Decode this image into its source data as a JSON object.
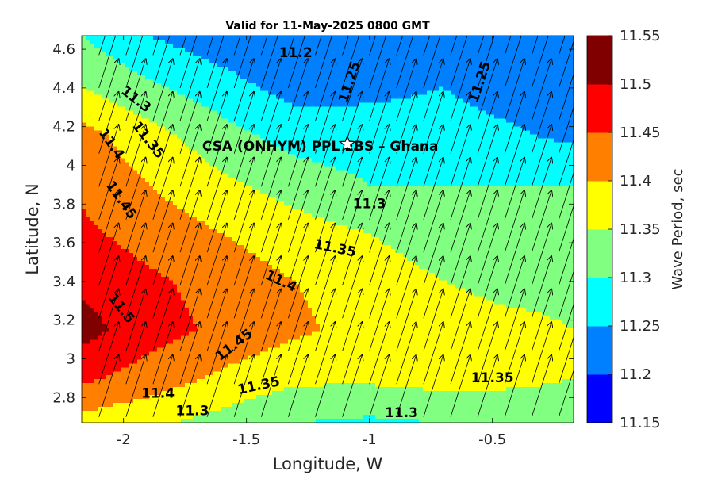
{
  "chart_data": {
    "type": "contour",
    "title": "Valid for 11-May-2025 0800 GMT",
    "xlabel": "Longitude, W",
    "ylabel": "Latitude, N",
    "xlim": [
      -2.17,
      -0.17
    ],
    "ylim": [
      2.67,
      4.67
    ],
    "xticks": [
      -2,
      -1.5,
      -1,
      -0.5
    ],
    "xtick_labels": [
      "-2",
      "-1.5",
      "-1",
      "-0.5"
    ],
    "yticks": [
      2.8,
      3.0,
      3.2,
      3.4,
      3.6,
      3.8,
      4.0,
      4.2,
      4.4,
      4.6
    ],
    "ytick_labels": [
      "2.8",
      "3",
      "3.2",
      "3.4",
      "3.6",
      "3.8",
      "4",
      "4.2",
      "4.4",
      "4.6"
    ],
    "colorbar": {
      "label": "Wave Period, sec",
      "levels": [
        11.15,
        11.2,
        11.25,
        11.3,
        11.35,
        11.4,
        11.45,
        11.5,
        11.55
      ],
      "level_labels": [
        "11.15",
        "11.2",
        "11.25",
        "11.3",
        "11.35",
        "11.4",
        "11.45",
        "11.5",
        "11.55"
      ],
      "colors": [
        "#0000ff",
        "#0080ff",
        "#00ffff",
        "#80ff80",
        "#ffff00",
        "#ff8000",
        "#ff0000",
        "#800000"
      ]
    },
    "contour_labels": [
      {
        "text": "11.2",
        "lon": -1.3,
        "lat": 4.58,
        "angle": 0
      },
      {
        "text": "11.25",
        "lon": -1.08,
        "lat": 4.43,
        "angle": -72
      },
      {
        "text": "11.25",
        "lon": -0.55,
        "lat": 4.43,
        "angle": -72
      },
      {
        "text": "11.3",
        "lon": -1.95,
        "lat": 4.34,
        "angle": 38
      },
      {
        "text": "11.35",
        "lon": -1.9,
        "lat": 4.13,
        "angle": 52
      },
      {
        "text": "11.4",
        "lon": -2.05,
        "lat": 4.11,
        "angle": 55
      },
      {
        "text": "11.45",
        "lon": -2.01,
        "lat": 3.82,
        "angle": 55
      },
      {
        "text": "11.3",
        "lon": -1.0,
        "lat": 3.8,
        "angle": 0
      },
      {
        "text": "11.35",
        "lon": -1.14,
        "lat": 3.57,
        "angle": 12
      },
      {
        "text": "11.4",
        "lon": -1.36,
        "lat": 3.4,
        "angle": 25
      },
      {
        "text": "11.5",
        "lon": -2.01,
        "lat": 3.26,
        "angle": 52
      },
      {
        "text": "11.45",
        "lon": -1.55,
        "lat": 3.07,
        "angle": -38
      },
      {
        "text": "11.4",
        "lon": -1.86,
        "lat": 2.82,
        "angle": 0
      },
      {
        "text": "11.35",
        "lon": -1.45,
        "lat": 2.86,
        "angle": -12
      },
      {
        "text": "11.3",
        "lon": -1.72,
        "lat": 2.73,
        "angle": 0
      },
      {
        "text": "11.35",
        "lon": -0.5,
        "lat": 2.9,
        "angle": 0
      },
      {
        "text": "11.3",
        "lon": -0.87,
        "lat": 2.72,
        "angle": 0
      }
    ],
    "annotation": {
      "text": "CSA (ONHYM) PPL EBS  – Ghana",
      "lon": -1.2,
      "lat": 4.1
    },
    "marker": {
      "symbol": "star",
      "lon": -1.09,
      "lat": 4.11
    },
    "vectors": {
      "description": "wave direction arrows",
      "lon_start": -2.1,
      "lon_step": 0.11,
      "lat_start": 2.7,
      "lat_step": 0.17,
      "dlon": 0.08,
      "dlat": 0.32
    },
    "field": {
      "lon": [
        -2.17,
        -1.9,
        -1.6,
        -1.3,
        -1.0,
        -0.7,
        -0.45,
        -0.17
      ],
      "lat": [
        2.67,
        2.9,
        3.15,
        3.4,
        3.65,
        3.9,
        4.15,
        4.4,
        4.67
      ],
      "values": [
        [
          11.38,
          11.36,
          11.33,
          11.3,
          11.29,
          11.3,
          11.32,
          11.33
        ],
        [
          11.46,
          11.43,
          11.39,
          11.36,
          11.36,
          11.37,
          11.36,
          11.35
        ],
        [
          11.52,
          11.47,
          11.44,
          11.41,
          11.38,
          11.37,
          11.36,
          11.35
        ],
        [
          11.49,
          11.46,
          11.43,
          11.4,
          11.37,
          11.35,
          11.34,
          11.34
        ],
        [
          11.46,
          11.43,
          11.4,
          11.37,
          11.35,
          11.33,
          11.32,
          11.32
        ],
        [
          11.44,
          11.4,
          11.36,
          11.33,
          11.3,
          11.3,
          11.3,
          11.3
        ],
        [
          11.42,
          11.37,
          11.32,
          11.28,
          11.27,
          11.27,
          11.26,
          11.24
        ],
        [
          11.35,
          11.31,
          11.27,
          11.23,
          11.24,
          11.25,
          11.23,
          11.21
        ],
        [
          11.3,
          11.25,
          11.22,
          11.2,
          11.2,
          11.22,
          11.21,
          11.2
        ]
      ]
    }
  }
}
